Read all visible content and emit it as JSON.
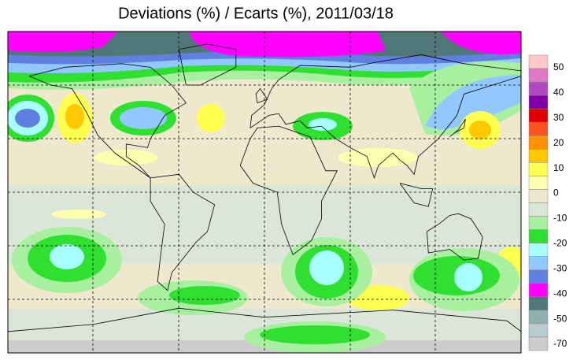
{
  "title": "Deviations (%) / Ecarts (%), 2011/03/18",
  "legend": {
    "labels": [
      50,
      40,
      30,
      20,
      10,
      0,
      -10,
      -20,
      -30,
      -40,
      -50,
      -70
    ],
    "colors": [
      "#ffc8c8",
      "#e078c8",
      "#b048c0",
      "#8000a8",
      "#e00000",
      "#ff5020",
      "#ff9000",
      "#ffc800",
      "#ffff50",
      "#ffffb0",
      "#eee8cc",
      "#dce6d8",
      "#a8f0a0",
      "#30e030",
      "#a8ffff",
      "#90c8ff",
      "#6080e0",
      "#ff00ff",
      "#507878",
      "#90b0b0",
      "#b8cccc",
      "#cccccc"
    ]
  }
}
